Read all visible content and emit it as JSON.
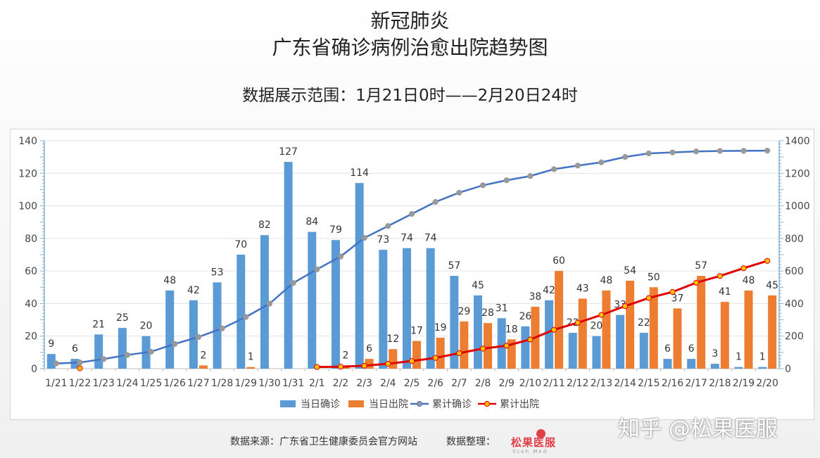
{
  "header": {
    "title_line1": "新冠肺炎",
    "title_line2": "广东省确诊病例治愈出院趋势图",
    "subtitle": "数据展示范围：1月21日0时——2月20日24时"
  },
  "footer": {
    "source": "数据来源：广东省卫生健康委员会官方网站",
    "organizer_label": "数据整理：",
    "logo_text": "松果医服",
    "logo_sub": "Scoh Med"
  },
  "watermark": "知乎 @松果医服",
  "colors": {
    "confirmed_bar": "#5b9bd5",
    "discharged_bar": "#ed7d31",
    "cumulative_confirmed": "#4472c4",
    "cumulative_confirmed_marker": "#999999",
    "cumulative_discharged": "#e00000",
    "cumulative_discharged_marker": "#ffc000"
  },
  "chart_data": {
    "type": "bar+line",
    "categories": [
      "1/21",
      "1/22",
      "1/23",
      "1/24",
      "1/25",
      "1/26",
      "1/27",
      "1/28",
      "1/29",
      "1/30",
      "1/31",
      "2/1",
      "2/2",
      "2/3",
      "2/4",
      "2/5",
      "2/6",
      "2/7",
      "2/8",
      "2/9",
      "2/10",
      "2/11",
      "2/12",
      "2/13",
      "2/14",
      "2/15",
      "2/16",
      "2/17",
      "2/18",
      "2/19",
      "2/20"
    ],
    "series": [
      {
        "name": "当日确诊",
        "type": "bar",
        "axis": "left",
        "values": [
          9,
          6,
          21,
          25,
          20,
          48,
          42,
          53,
          70,
          82,
          127,
          84,
          79,
          114,
          73,
          74,
          74,
          57,
          45,
          31,
          26,
          42,
          22,
          20,
          33,
          22,
          6,
          6,
          3,
          1,
          1
        ]
      },
      {
        "name": "当日出院",
        "type": "bar",
        "axis": "left",
        "values": [
          null,
          0,
          null,
          null,
          null,
          null,
          2,
          null,
          1,
          null,
          null,
          null,
          2,
          6,
          12,
          17,
          19,
          29,
          28,
          18,
          38,
          60,
          43,
          48,
          54,
          50,
          37,
          57,
          41,
          48,
          45
        ]
      },
      {
        "name": "累计确诊",
        "type": "line",
        "axis": "right",
        "values": [
          32,
          38,
          59,
          84,
          104,
          152,
          194,
          247,
          317,
          399,
          526,
          610,
          689,
          803,
          876,
          950,
          1024,
          1081,
          1126,
          1157,
          1183,
          1225,
          1247,
          1267,
          1300,
          1322,
          1328,
          1334,
          1337,
          1338,
          1339
        ]
      },
      {
        "name": "累计出院",
        "type": "line",
        "axis": "right",
        "values": [
          null,
          2,
          null,
          null,
          null,
          null,
          null,
          null,
          null,
          null,
          null,
          10,
          12,
          18,
          30,
          47,
          66,
          95,
          123,
          141,
          179,
          239,
          282,
          330,
          384,
          434,
          471,
          528,
          569,
          617,
          662
        ]
      }
    ],
    "y_left": {
      "min": 0,
      "max": 140,
      "ticks": [
        0,
        20,
        40,
        60,
        80,
        100,
        120,
        140
      ]
    },
    "y_right": {
      "min": 0,
      "max": 1400,
      "ticks": [
        0,
        200,
        400,
        600,
        800,
        1000,
        1200,
        1400
      ]
    },
    "legend_position": "bottom"
  }
}
